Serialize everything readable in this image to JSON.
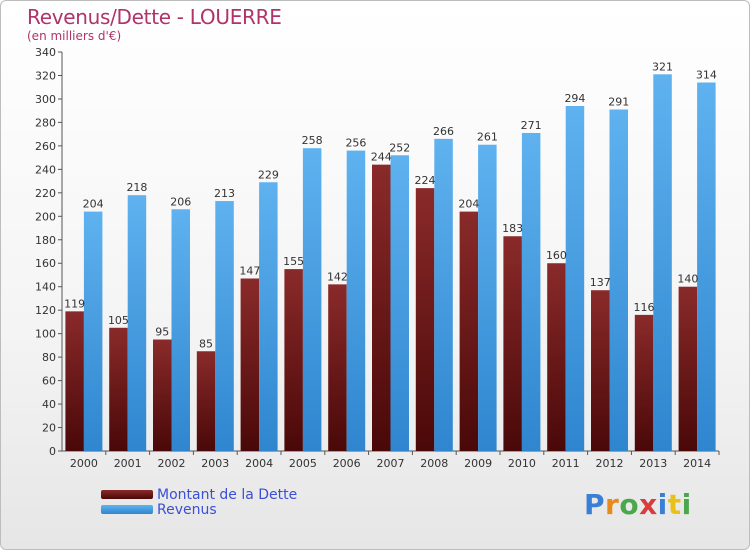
{
  "header": {
    "title": "Revenus/Dette - LOUERRE",
    "subtitle": "(en milliers d'€)"
  },
  "colors": {
    "dette": "#7a1f1f",
    "revenus": "#4aa3e6",
    "title": "#b0336a",
    "legend_text": "#3a4fd6"
  },
  "legend": {
    "items": [
      {
        "label": "Montant de la Dette",
        "color": "#7a1f1f"
      },
      {
        "label": "Revenus",
        "color": "#4aa3e6"
      }
    ]
  },
  "logo": {
    "text": "Proxiti",
    "letter_colors": [
      "#3a7fd6",
      "#e88a1a",
      "#4aa84a",
      "#d83c3c",
      "#3a7fd6",
      "#e8c21a",
      "#4aa84a"
    ]
  },
  "chart_data": {
    "type": "bar",
    "title": "Revenus/Dette - LOUERRE",
    "subtitle": "(en milliers d'€)",
    "xlabel": "",
    "ylabel": "",
    "ylim": [
      0,
      340
    ],
    "y_tick_step": 20,
    "grid": false,
    "legend_position": "bottom-left",
    "categories": [
      "2000",
      "2001",
      "2002",
      "2003",
      "2004",
      "2005",
      "2006",
      "2007",
      "2008",
      "2009",
      "2010",
      "2011",
      "2012",
      "2013",
      "2014"
    ],
    "series": [
      {
        "name": "Montant de la Dette",
        "values": [
          119,
          105,
          95,
          85,
          147,
          155,
          142,
          244,
          224,
          204,
          183,
          160,
          137,
          116,
          140
        ]
      },
      {
        "name": "Revenus",
        "values": [
          204,
          218,
          206,
          213,
          229,
          258,
          256,
          252,
          266,
          261,
          271,
          294,
          291,
          321,
          314
        ]
      }
    ]
  }
}
